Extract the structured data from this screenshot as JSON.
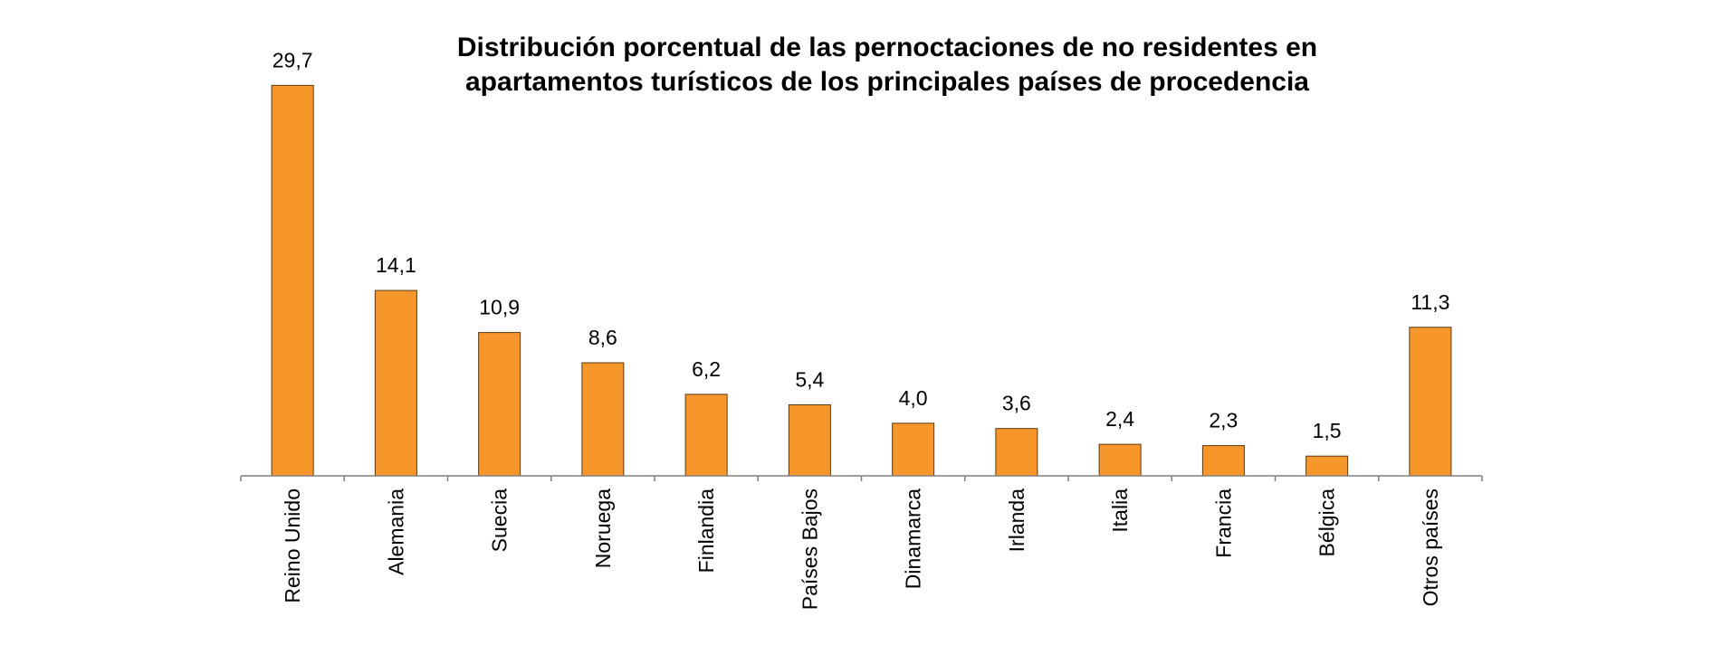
{
  "chart_data": {
    "type": "bar",
    "title_lines": [
      "Distribución porcentual de las pernoctaciones de no residentes en",
      "apartamentos turísticos de los principales países de procedencia"
    ],
    "categories": [
      "Reino Unido",
      "Alemania",
      "Suecia",
      "Noruega",
      "Finlandia",
      "Países Bajos",
      "Dinamarca",
      "Irlanda",
      "Italia",
      "Francia",
      "Bélgica",
      "Otros países"
    ],
    "values": [
      29.7,
      14.1,
      10.9,
      8.6,
      6.2,
      5.4,
      4.0,
      3.6,
      2.4,
      2.3,
      1.5,
      11.3
    ],
    "data_labels": [
      "29,7",
      "14,1",
      "10,9",
      "8,6",
      "6,2",
      "5,4",
      "4,0",
      "3,6",
      "2,4",
      "2,3",
      "1,5",
      "11,3"
    ],
    "ylim": [
      0,
      30
    ],
    "grid": false,
    "legend": "none",
    "bar_color": "#f7962b",
    "bar_stroke": "#5a3a10"
  }
}
